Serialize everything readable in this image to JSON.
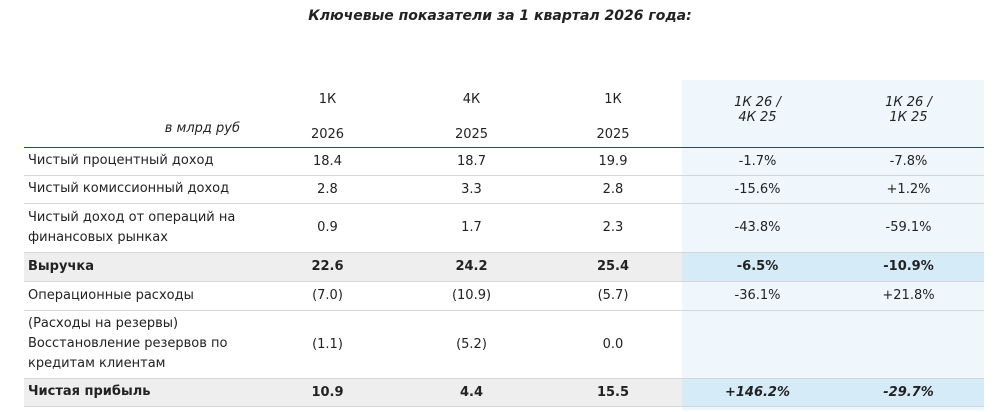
{
  "title": "Ключевые показатели за 1 квартал 2026 года:",
  "header": {
    "unit": "в млрд руб",
    "columns": [
      {
        "top": "1К",
        "bottom": "2026"
      },
      {
        "top": "4К",
        "bottom": "2025"
      },
      {
        "top": "1К",
        "bottom": "2025"
      },
      {
        "top": "1К 26 /",
        "bottom": "4К 25"
      },
      {
        "top": "1К 26 /",
        "bottom": "1К 25"
      }
    ]
  },
  "rows": [
    {
      "label": "Чистый процентный доход",
      "values": [
        "18.4",
        "18.7",
        "19.9",
        "-1.7%",
        "-7.8%"
      ]
    },
    {
      "label": "Чистый комиссионный доход",
      "values": [
        "2.8",
        "3.3",
        "2.8",
        "-15.6%",
        "+1.2%"
      ]
    },
    {
      "label_line1": "Чистый доход от операций на",
      "label_line2": "финансовых рынках",
      "values": [
        "0.9",
        "1.7",
        "2.3",
        "-43.8%",
        "-59.1%"
      ]
    },
    {
      "label": "Выручка",
      "values": [
        "22.6",
        "24.2",
        "25.4",
        "-6.5%",
        "-10.9%"
      ]
    },
    {
      "label": "Операционные расходы",
      "values": [
        "(7.0)",
        "(10.9)",
        "(5.7)",
        "-36.1%",
        "+21.8%"
      ]
    },
    {
      "label_line1": "(Расходы на резервы)",
      "label_line2": "Восстановление резервов по",
      "label_line3": "кредитам клиентам",
      "values": [
        "(1.1)",
        "(5.2)",
        "0.0",
        "",
        ""
      ]
    },
    {
      "label": "Чистая прибыль",
      "values": [
        "10.9",
        "4.4",
        "15.5",
        "+146.2%",
        "-29.7%"
      ]
    }
  ]
}
